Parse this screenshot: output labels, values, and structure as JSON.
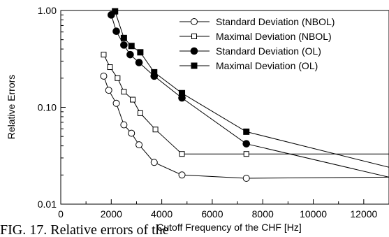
{
  "chart_data": {
    "type": "line",
    "xlabel": "Cutoff Frequency of the CHF [Hz]",
    "ylabel": "Relative Errors",
    "xlim": [
      0,
      13000
    ],
    "ylim": [
      0.01,
      1.0
    ],
    "yscale": "log",
    "x_ticks": [
      0,
      2000,
      4000,
      6000,
      8000,
      10000,
      12000
    ],
    "x_tick_labels": [
      "0",
      "2000",
      "4000",
      "6000",
      "8000",
      "10000",
      "12000"
    ],
    "y_ticks": [
      0.01,
      0.1,
      1.0
    ],
    "y_tick_labels": [
      "0.01",
      "0.10",
      "1.00"
    ],
    "grid": false,
    "legend_position": "top-right",
    "series": [
      {
        "name": "Standard Deviation (NBOL)",
        "marker": "open-circle",
        "x": [
          1700,
          1900,
          2200,
          2500,
          2800,
          3100,
          3700,
          4800,
          7350,
          13000
        ],
        "y": [
          0.21,
          0.15,
          0.11,
          0.066,
          0.054,
          0.041,
          0.027,
          0.02,
          0.0185,
          0.019
        ]
      },
      {
        "name": "Maximal Deviation (NBOL)",
        "marker": "open-square",
        "x": [
          1700,
          1950,
          2250,
          2500,
          2850,
          3150,
          3750,
          4800,
          7350,
          13000
        ],
        "y": [
          0.35,
          0.26,
          0.2,
          0.145,
          0.12,
          0.087,
          0.059,
          0.033,
          0.033,
          0.033
        ]
      },
      {
        "name": "Standard Deviation (OL)",
        "marker": "filled-circle",
        "x": [
          2000,
          2200,
          2500,
          2750,
          3100,
          3700,
          4800,
          7350,
          13000
        ],
        "y": [
          0.9,
          0.61,
          0.44,
          0.35,
          0.29,
          0.21,
          0.125,
          0.042,
          0.019
        ]
      },
      {
        "name": "Maximal Deviation (OL)",
        "marker": "filled-square",
        "x": [
          2150,
          2500,
          2800,
          3150,
          3700,
          4800,
          7350,
          13000
        ],
        "y": [
          0.98,
          0.52,
          0.43,
          0.37,
          0.23,
          0.14,
          0.056,
          0.024
        ]
      }
    ]
  },
  "caption_fragment": "FIG. 17. Relative errors of the"
}
